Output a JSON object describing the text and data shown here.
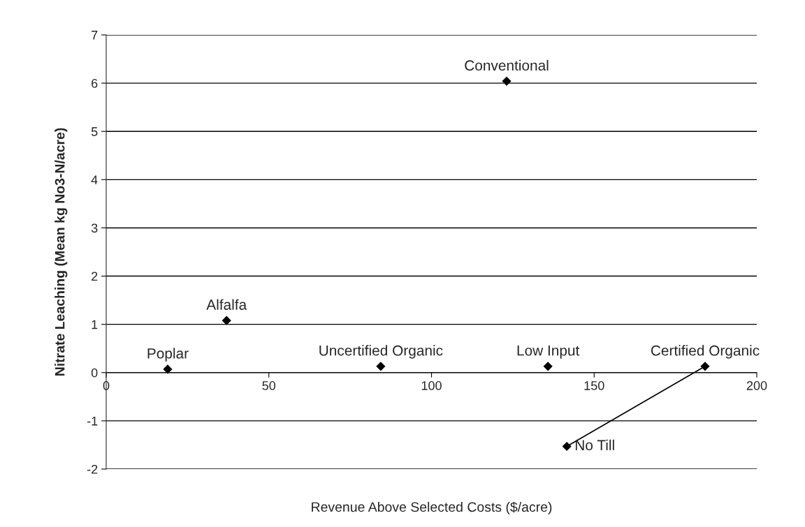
{
  "chart_data": {
    "type": "scatter",
    "xlabel": "Revenue Above Selected Costs ($/acre)",
    "ylabel": "Nitrate Leaching (Mean kg No3-N/acre)",
    "series": [
      {
        "color": "#000000",
        "marker": "diamond",
        "x": [
          18.9,
          37,
          84.4,
          123.1,
          135.8,
          184.1,
          141.6
        ],
        "values": [
          0.07,
          1.08,
          0.13,
          6.04,
          0.13,
          0.13,
          -1.53
        ]
      },
      {
        "type": "line",
        "color": "#000000",
        "marker": "none",
        "x": [
          141.6,
          184.1
        ],
        "values": [
          -1.53,
          0.13
        ]
      }
    ],
    "xlim": [
      0,
      200
    ],
    "xticks": [
      0,
      50,
      100,
      150,
      200
    ],
    "ylim": [
      -2,
      7
    ],
    "yticks": [
      -2,
      -1,
      0,
      1,
      2,
      3,
      4,
      5,
      6,
      7
    ],
    "grid": "y",
    "legend": false,
    "annotations": [
      {
        "text": "Poplar",
        "x": 18.9,
        "y": 0.07
      },
      {
        "text": "Alfalfa",
        "x": 37,
        "y": 1.08
      },
      {
        "text": "Uncertified Organic",
        "x": 84.4,
        "y": 0.13
      },
      {
        "text": "Conventional",
        "x": 123.1,
        "y": 6.04
      },
      {
        "text": "Low Input",
        "x": 135.8,
        "y": 0.13
      },
      {
        "text": "Certified Organic",
        "x": 184.1,
        "y": 0.13
      },
      {
        "text": "No Till",
        "x": 141.6,
        "y": -1.53
      }
    ]
  }
}
